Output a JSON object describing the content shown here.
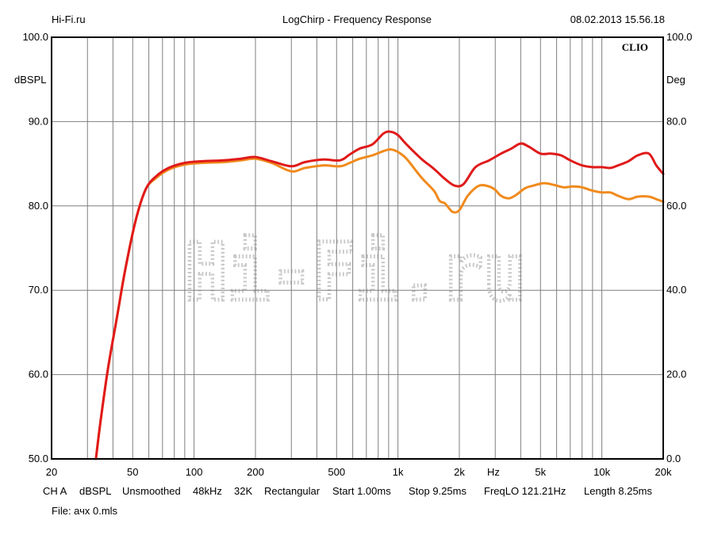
{
  "header": {
    "site": "Hi-Fi.ru",
    "title": "LogChirp - Frequency Response",
    "timestamp": "08.02.2013 15.56.18"
  },
  "footer": {
    "settings": [
      "CH A",
      "dBSPL",
      "Unsmoothed",
      "48kHz",
      "32K",
      "Rectangular",
      "Start 1.00ms",
      "Stop 9.25ms",
      "FreqLO 121.21Hz",
      "Length 8.25ms"
    ],
    "file": "File: ачх 0.mls"
  },
  "brand": "CLIO",
  "watermark": "Hi-Fi.ru",
  "colors": {
    "grid": "#7f7f7f",
    "series_red": "#e01a1a",
    "series_orange": "#f08a1c",
    "watermark": "#c8c8c8"
  },
  "chart_data": {
    "type": "line",
    "title": "LogChirp - Frequency Response",
    "xscale": "log",
    "xlim": [
      20,
      20000
    ],
    "ylim": [
      50,
      100
    ],
    "y2lim": [
      0,
      100
    ],
    "ylabel": "dBSPL",
    "y2label": "Deg",
    "xunit": "Hz",
    "grid": true,
    "x_ticks": [
      {
        "value": 20,
        "label": "20"
      },
      {
        "value": 50,
        "label": "50"
      },
      {
        "value": 100,
        "label": "100"
      },
      {
        "value": 200,
        "label": "200"
      },
      {
        "value": 500,
        "label": "500"
      },
      {
        "value": 1000,
        "label": "1k"
      },
      {
        "value": 2000,
        "label": "2k"
      },
      {
        "value": 5000,
        "label": "5k"
      },
      {
        "value": 10000,
        "label": "10k"
      },
      {
        "value": 20000,
        "label": "20k"
      }
    ],
    "y_ticks": [
      "50.0",
      "60.0",
      "70.0",
      "80.0",
      "90.0",
      "100.0"
    ],
    "y2_ticks": [
      "0.0",
      "20.0",
      "40.0",
      "60.0",
      "80.0",
      "100.0"
    ],
    "series": [
      {
        "color": "#e01a1a",
        "x": [
          33,
          35,
          38,
          42,
          46,
          52,
          58,
          65,
          75,
          90,
          110,
          140,
          170,
          200,
          240,
          300,
          350,
          430,
          520,
          580,
          650,
          750,
          850,
          920,
          1000,
          1100,
          1300,
          1500,
          1700,
          1900,
          2100,
          2400,
          2800,
          3200,
          3600,
          4000,
          4400,
          5000,
          5600,
          6300,
          7000,
          8000,
          9000,
          10000,
          11000,
          12000,
          13500,
          15000,
          17000,
          18500,
          20000
        ],
        "y": [
          50,
          55,
          61,
          67,
          72.5,
          78.5,
          82,
          83.5,
          84.5,
          85.1,
          85.3,
          85.4,
          85.6,
          85.8,
          85.3,
          84.7,
          85.2,
          85.5,
          85.4,
          86.1,
          86.8,
          87.3,
          88.6,
          88.8,
          88.4,
          87.3,
          85.6,
          84.4,
          83.2,
          82.4,
          82.6,
          84.6,
          85.4,
          86.2,
          86.8,
          87.4,
          87.0,
          86.2,
          86.2,
          86.0,
          85.4,
          84.8,
          84.6,
          84.6,
          84.5,
          84.8,
          85.3,
          86.0,
          86.2,
          84.8,
          83.8
        ]
      },
      {
        "color": "#f08a1c",
        "x": [
          33,
          35,
          38,
          42,
          46,
          52,
          58,
          65,
          75,
          90,
          110,
          140,
          170,
          200,
          240,
          300,
          350,
          430,
          520,
          580,
          650,
          750,
          850,
          920,
          1000,
          1100,
          1300,
          1500,
          1600,
          1700,
          1850,
          2000,
          2200,
          2500,
          2800,
          3000,
          3200,
          3500,
          3800,
          4200,
          4600,
          5200,
          5800,
          6500,
          7200,
          8000,
          9000,
          10000,
          11000,
          12000,
          13500,
          15000,
          17000,
          18500,
          20000
        ],
        "y": [
          50,
          55,
          61,
          67,
          72.5,
          78.5,
          82,
          83.3,
          84.3,
          84.9,
          85.1,
          85.2,
          85.4,
          85.6,
          85.1,
          84.1,
          84.5,
          84.8,
          84.7,
          85.1,
          85.6,
          86.0,
          86.5,
          86.7,
          86.4,
          85.6,
          83.4,
          81.8,
          80.6,
          80.3,
          79.3,
          79.5,
          81.2,
          82.4,
          82.3,
          81.9,
          81.2,
          80.9,
          81.3,
          82.1,
          82.4,
          82.7,
          82.5,
          82.2,
          82.3,
          82.2,
          81.8,
          81.6,
          81.6,
          81.2,
          80.8,
          81.1,
          81.1,
          80.8,
          80.5
        ]
      }
    ]
  }
}
